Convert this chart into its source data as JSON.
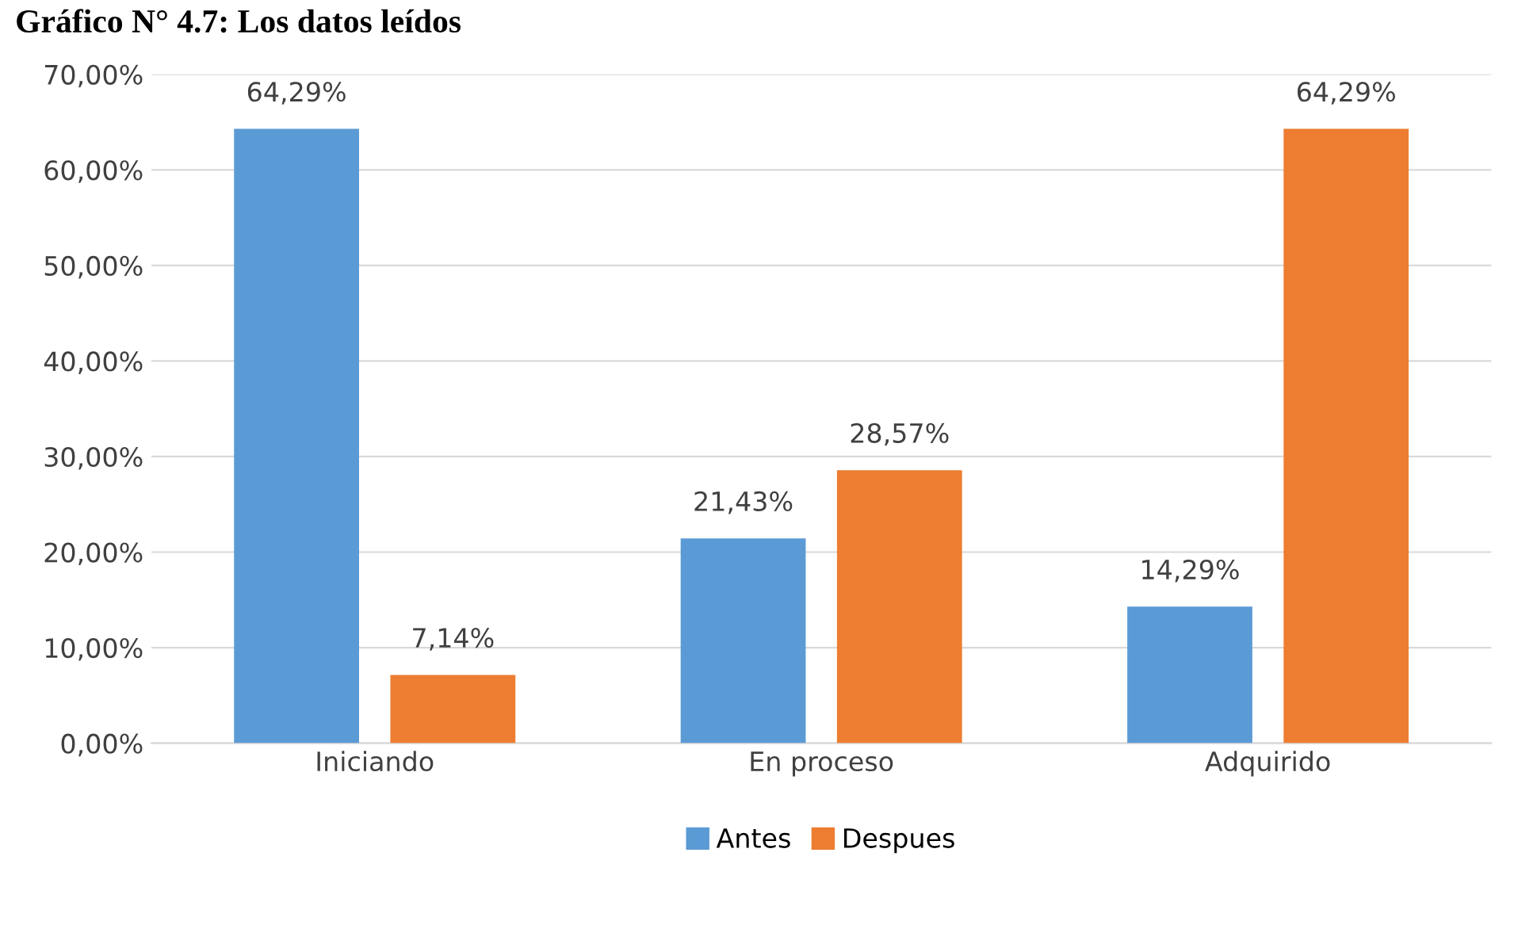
{
  "chart_data": {
    "type": "bar",
    "title": "Gráfico N° 4.7: Los datos leídos",
    "categories": [
      "Iniciando",
      "En proceso",
      "Adquirido"
    ],
    "series": [
      {
        "name": "Antes",
        "color": "#5b9bd5",
        "values": [
          64.29,
          21.43,
          14.29
        ],
        "value_labels": [
          "64,29%",
          "21,43%",
          "14,29%"
        ]
      },
      {
        "name": "Despues",
        "color": "#ed7d31",
        "values": [
          7.14,
          28.57,
          64.29
        ],
        "value_labels": [
          "7,14%",
          "28,57%",
          "64,29%"
        ]
      }
    ],
    "ylim": [
      0,
      70
    ],
    "yticks": [
      {
        "value": 0,
        "label": "0,00%"
      },
      {
        "value": 10,
        "label": "10,00%"
      },
      {
        "value": 20,
        "label": "20,00%"
      },
      {
        "value": 30,
        "label": "30,00%"
      },
      {
        "value": 40,
        "label": "40,00%"
      },
      {
        "value": 50,
        "label": "50,00%"
      },
      {
        "value": 60,
        "label": "60,00%"
      },
      {
        "value": 70,
        "label": "70,00%"
      }
    ],
    "grid": "y",
    "legend": "bottom"
  }
}
